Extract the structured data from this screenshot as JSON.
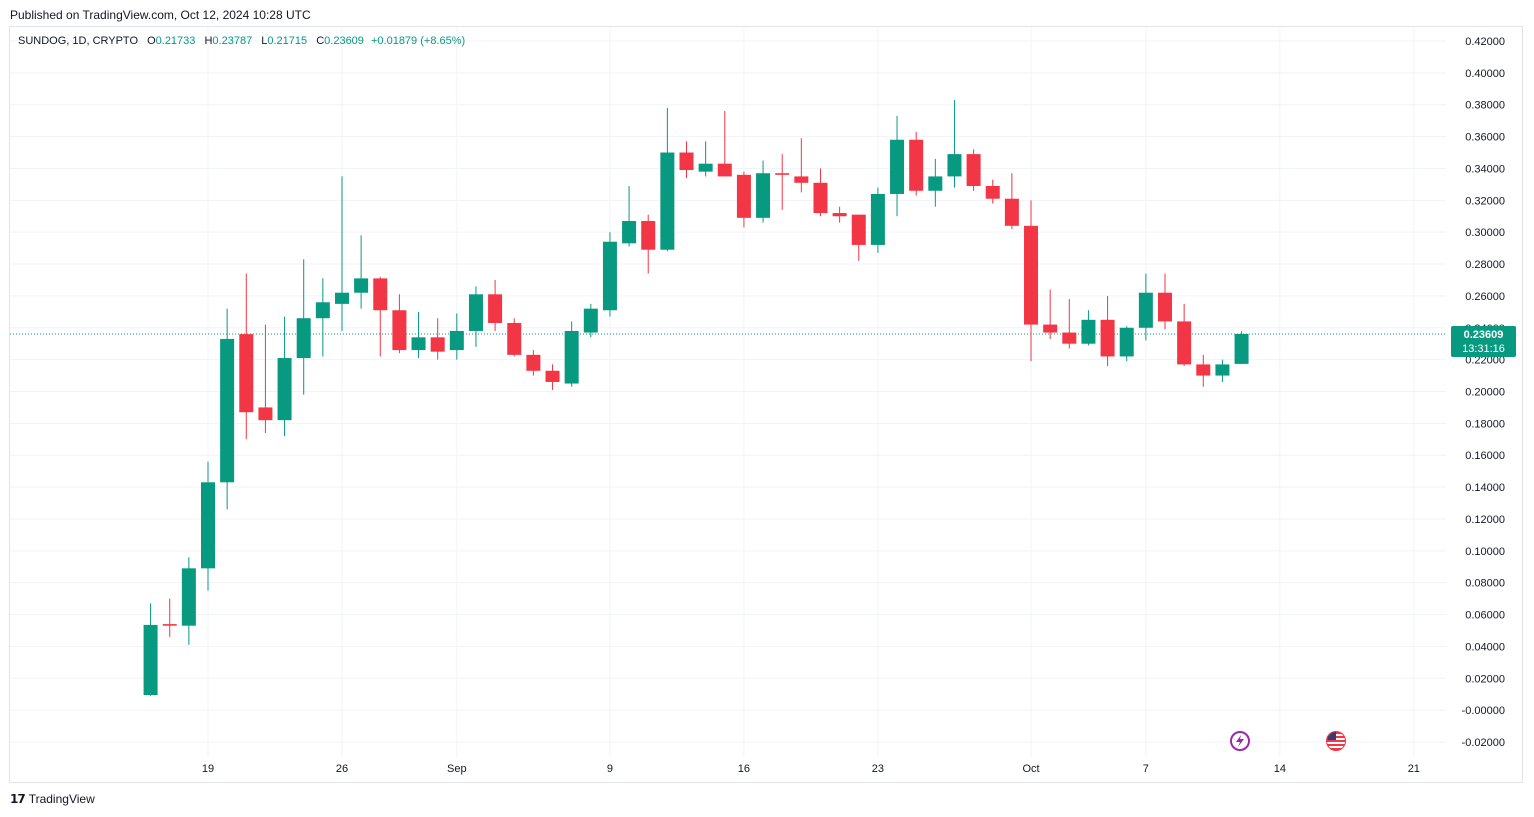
{
  "header": {
    "published": "Published on TradingView.com, Oct 12, 2024 10:28 UTC"
  },
  "legend": {
    "symbol": "SUNDOG, 1D, CRYPTO",
    "open_label": "O",
    "open": "0.21733",
    "high_label": "H",
    "high": "0.23787",
    "low_label": "L",
    "low": "0.21715",
    "close_label": "C",
    "close": "0.23609",
    "change": "+0.01879 (+8.65%)"
  },
  "price_tag": {
    "price": "0.23609",
    "countdown": "13:31:16"
  },
  "footer": {
    "logo_icon": "tradingview-logo-icon",
    "brand": "TradingView"
  },
  "events": [
    {
      "icon": "lightning-icon",
      "date": "2024-10-11"
    },
    {
      "icon": "us-flag-icon",
      "date": "2024-10-17"
    }
  ],
  "colors": {
    "up": "#089981",
    "down": "#f23645",
    "grid": "#f0f3fa",
    "text": "#131722"
  },
  "chart_data": {
    "type": "candlestick",
    "title": "",
    "xlabel": "",
    "ylabel": "",
    "ylim": [
      -0.024,
      0.424
    ],
    "xlim": [
      "2024-08-13",
      "2024-10-23"
    ],
    "grid": true,
    "y_ticks": [
      "0.42000",
      "0.40000",
      "0.38000",
      "0.36000",
      "0.34000",
      "0.32000",
      "0.30000",
      "0.28000",
      "0.26000",
      "0.24000",
      "0.22000",
      "0.20000",
      "0.18000",
      "0.16000",
      "0.14000",
      "0.12000",
      "0.10000",
      "0.08000",
      "0.06000",
      "0.04000",
      "0.02000",
      "-0.00000",
      "-0.02000"
    ],
    "x_ticks": [
      {
        "date": "2024-08-19",
        "label": "19"
      },
      {
        "date": "2024-08-26",
        "label": "26"
      },
      {
        "date": "2024-09-01",
        "label": "Sep"
      },
      {
        "date": "2024-09-09",
        "label": "9"
      },
      {
        "date": "2024-09-16",
        "label": "16"
      },
      {
        "date": "2024-09-23",
        "label": "23"
      },
      {
        "date": "2024-10-01",
        "label": "Oct"
      },
      {
        "date": "2024-10-07",
        "label": "7"
      },
      {
        "date": "2024-10-14",
        "label": "14"
      },
      {
        "date": "2024-10-21",
        "label": "21"
      }
    ],
    "last_price": 0.23609,
    "candles": [
      {
        "date": "2024-08-16",
        "o": 0.0095,
        "h": 0.067,
        "l": 0.009,
        "c": 0.0535
      },
      {
        "date": "2024-08-17",
        "o": 0.054,
        "h": 0.07,
        "l": 0.046,
        "c": 0.053
      },
      {
        "date": "2024-08-18",
        "o": 0.053,
        "h": 0.096,
        "l": 0.041,
        "c": 0.089
      },
      {
        "date": "2024-08-19",
        "o": 0.089,
        "h": 0.156,
        "l": 0.075,
        "c": 0.143
      },
      {
        "date": "2024-08-20",
        "o": 0.143,
        "h": 0.252,
        "l": 0.126,
        "c": 0.233
      },
      {
        "date": "2024-08-21",
        "o": 0.236,
        "h": 0.274,
        "l": 0.17,
        "c": 0.187
      },
      {
        "date": "2024-08-22",
        "o": 0.19,
        "h": 0.242,
        "l": 0.174,
        "c": 0.182
      },
      {
        "date": "2024-08-23",
        "o": 0.182,
        "h": 0.247,
        "l": 0.172,
        "c": 0.221
      },
      {
        "date": "2024-08-24",
        "o": 0.221,
        "h": 0.283,
        "l": 0.198,
        "c": 0.246
      },
      {
        "date": "2024-08-25",
        "o": 0.246,
        "h": 0.271,
        "l": 0.222,
        "c": 0.256
      },
      {
        "date": "2024-08-26",
        "o": 0.255,
        "h": 0.335,
        "l": 0.238,
        "c": 0.262
      },
      {
        "date": "2024-08-27",
        "o": 0.262,
        "h": 0.298,
        "l": 0.252,
        "c": 0.271
      },
      {
        "date": "2024-08-28",
        "o": 0.271,
        "h": 0.272,
        "l": 0.222,
        "c": 0.251
      },
      {
        "date": "2024-08-29",
        "o": 0.251,
        "h": 0.261,
        "l": 0.224,
        "c": 0.226
      },
      {
        "date": "2024-08-30",
        "o": 0.226,
        "h": 0.25,
        "l": 0.221,
        "c": 0.234
      },
      {
        "date": "2024-08-31",
        "o": 0.234,
        "h": 0.246,
        "l": 0.22,
        "c": 0.225
      },
      {
        "date": "2024-09-01",
        "o": 0.226,
        "h": 0.249,
        "l": 0.22,
        "c": 0.238
      },
      {
        "date": "2024-09-02",
        "o": 0.238,
        "h": 0.266,
        "l": 0.228,
        "c": 0.261
      },
      {
        "date": "2024-09-03",
        "o": 0.261,
        "h": 0.27,
        "l": 0.238,
        "c": 0.243
      },
      {
        "date": "2024-09-04",
        "o": 0.243,
        "h": 0.246,
        "l": 0.222,
        "c": 0.223
      },
      {
        "date": "2024-09-05",
        "o": 0.223,
        "h": 0.226,
        "l": 0.21,
        "c": 0.213
      },
      {
        "date": "2024-09-06",
        "o": 0.213,
        "h": 0.217,
        "l": 0.201,
        "c": 0.206
      },
      {
        "date": "2024-09-07",
        "o": 0.205,
        "h": 0.244,
        "l": 0.203,
        "c": 0.238
      },
      {
        "date": "2024-09-08",
        "o": 0.237,
        "h": 0.255,
        "l": 0.234,
        "c": 0.252
      },
      {
        "date": "2024-09-09",
        "o": 0.251,
        "h": 0.3,
        "l": 0.247,
        "c": 0.294
      },
      {
        "date": "2024-09-10",
        "o": 0.293,
        "h": 0.329,
        "l": 0.291,
        "c": 0.307
      },
      {
        "date": "2024-09-11",
        "o": 0.307,
        "h": 0.311,
        "l": 0.274,
        "c": 0.289
      },
      {
        "date": "2024-09-12",
        "o": 0.289,
        "h": 0.378,
        "l": 0.288,
        "c": 0.35
      },
      {
        "date": "2024-09-13",
        "o": 0.35,
        "h": 0.357,
        "l": 0.334,
        "c": 0.339
      },
      {
        "date": "2024-09-14",
        "o": 0.338,
        "h": 0.357,
        "l": 0.335,
        "c": 0.343
      },
      {
        "date": "2024-09-15",
        "o": 0.343,
        "h": 0.376,
        "l": 0.335,
        "c": 0.335
      },
      {
        "date": "2024-09-16",
        "o": 0.336,
        "h": 0.338,
        "l": 0.303,
        "c": 0.309
      },
      {
        "date": "2024-09-17",
        "o": 0.309,
        "h": 0.345,
        "l": 0.306,
        "c": 0.337
      },
      {
        "date": "2024-09-18",
        "o": 0.337,
        "h": 0.349,
        "l": 0.314,
        "c": 0.336
      },
      {
        "date": "2024-09-19",
        "o": 0.335,
        "h": 0.359,
        "l": 0.325,
        "c": 0.331
      },
      {
        "date": "2024-09-20",
        "o": 0.331,
        "h": 0.34,
        "l": 0.31,
        "c": 0.312
      },
      {
        "date": "2024-09-21",
        "o": 0.312,
        "h": 0.316,
        "l": 0.306,
        "c": 0.31
      },
      {
        "date": "2024-09-22",
        "o": 0.311,
        "h": 0.311,
        "l": 0.282,
        "c": 0.292
      },
      {
        "date": "2024-09-23",
        "o": 0.292,
        "h": 0.328,
        "l": 0.287,
        "c": 0.324
      },
      {
        "date": "2024-09-24",
        "o": 0.324,
        "h": 0.373,
        "l": 0.31,
        "c": 0.358
      },
      {
        "date": "2024-09-25",
        "o": 0.358,
        "h": 0.363,
        "l": 0.323,
        "c": 0.326
      },
      {
        "date": "2024-09-26",
        "o": 0.326,
        "h": 0.346,
        "l": 0.316,
        "c": 0.335
      },
      {
        "date": "2024-09-27",
        "o": 0.335,
        "h": 0.383,
        "l": 0.328,
        "c": 0.349
      },
      {
        "date": "2024-09-28",
        "o": 0.349,
        "h": 0.352,
        "l": 0.326,
        "c": 0.329
      },
      {
        "date": "2024-09-29",
        "o": 0.329,
        "h": 0.333,
        "l": 0.318,
        "c": 0.321
      },
      {
        "date": "2024-09-30",
        "o": 0.321,
        "h": 0.337,
        "l": 0.302,
        "c": 0.304
      },
      {
        "date": "2024-10-01",
        "o": 0.304,
        "h": 0.32,
        "l": 0.219,
        "c": 0.242
      },
      {
        "date": "2024-10-02",
        "o": 0.242,
        "h": 0.264,
        "l": 0.233,
        "c": 0.237
      },
      {
        "date": "2024-10-03",
        "o": 0.237,
        "h": 0.258,
        "l": 0.227,
        "c": 0.23
      },
      {
        "date": "2024-10-04",
        "o": 0.23,
        "h": 0.251,
        "l": 0.229,
        "c": 0.245
      },
      {
        "date": "2024-10-05",
        "o": 0.245,
        "h": 0.26,
        "l": 0.216,
        "c": 0.222
      },
      {
        "date": "2024-10-06",
        "o": 0.222,
        "h": 0.241,
        "l": 0.219,
        "c": 0.24
      },
      {
        "date": "2024-10-07",
        "o": 0.24,
        "h": 0.274,
        "l": 0.232,
        "c": 0.262
      },
      {
        "date": "2024-10-08",
        "o": 0.262,
        "h": 0.274,
        "l": 0.239,
        "c": 0.244
      },
      {
        "date": "2024-10-09",
        "o": 0.244,
        "h": 0.255,
        "l": 0.216,
        "c": 0.217
      },
      {
        "date": "2024-10-10",
        "o": 0.217,
        "h": 0.223,
        "l": 0.203,
        "c": 0.21
      },
      {
        "date": "2024-10-11",
        "o": 0.21,
        "h": 0.22,
        "l": 0.206,
        "c": 0.217
      },
      {
        "date": "2024-10-12",
        "o": 0.21733,
        "h": 0.23787,
        "l": 0.21715,
        "c": 0.23609
      }
    ]
  }
}
